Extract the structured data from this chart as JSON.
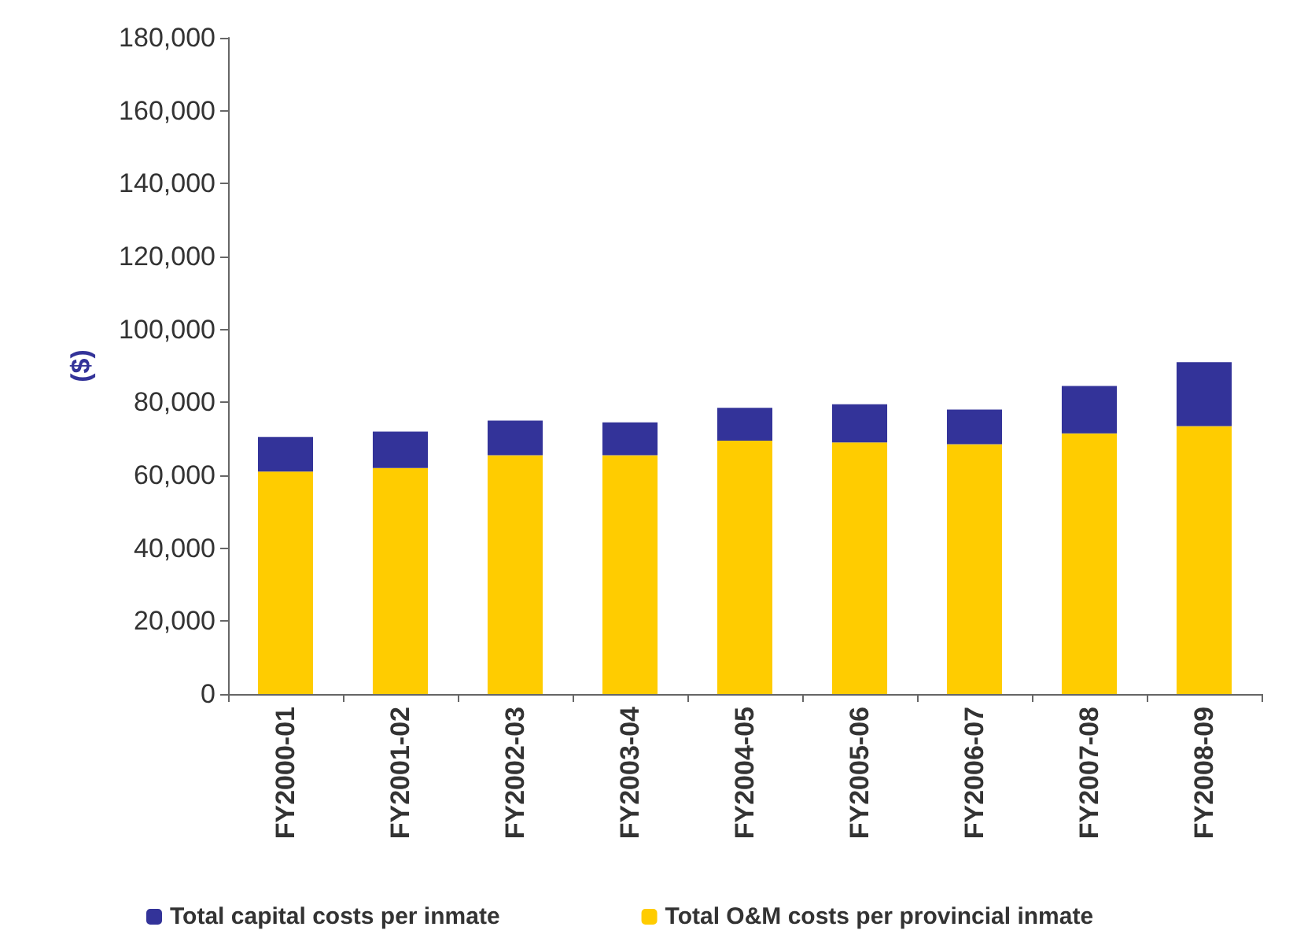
{
  "chart_data": {
    "type": "bar",
    "stacked": true,
    "ylabel": "($)",
    "categories": [
      "FY2000-01",
      "FY2001-02",
      "FY2002-03",
      "FY2003-04",
      "FY2004-05",
      "FY2005-06",
      "FY2006-07",
      "FY2007-08",
      "FY2008-09"
    ],
    "series": [
      {
        "name": "Total O&M costs per provincial inmate",
        "color": "#ffcc00",
        "values": [
          61000,
          62000,
          65500,
          65500,
          69500,
          69000,
          68500,
          71500,
          73500
        ]
      },
      {
        "name": "Total capital costs per inmate",
        "color": "#333399",
        "values": [
          9500,
          10000,
          9500,
          9000,
          9000,
          10500,
          9500,
          13000,
          17500
        ]
      }
    ],
    "ylim": [
      0,
      180000
    ],
    "yticks": [
      0,
      {
        "value": 20000,
        "label": "20,000"
      },
      {
        "value": 40000,
        "label": "40,000"
      },
      {
        "value": 60000,
        "label": "60,000"
      },
      {
        "value": 80000,
        "label": "80,000"
      },
      {
        "value": 100000,
        "label": "100,000"
      },
      {
        "value": 120000,
        "label": "120,000"
      },
      {
        "value": 140000,
        "label": "140,000"
      },
      {
        "value": 160000,
        "label": "160,000"
      },
      {
        "value": 180000,
        "label": "180,000"
      }
    ],
    "grid": false,
    "legend": "bottom"
  }
}
